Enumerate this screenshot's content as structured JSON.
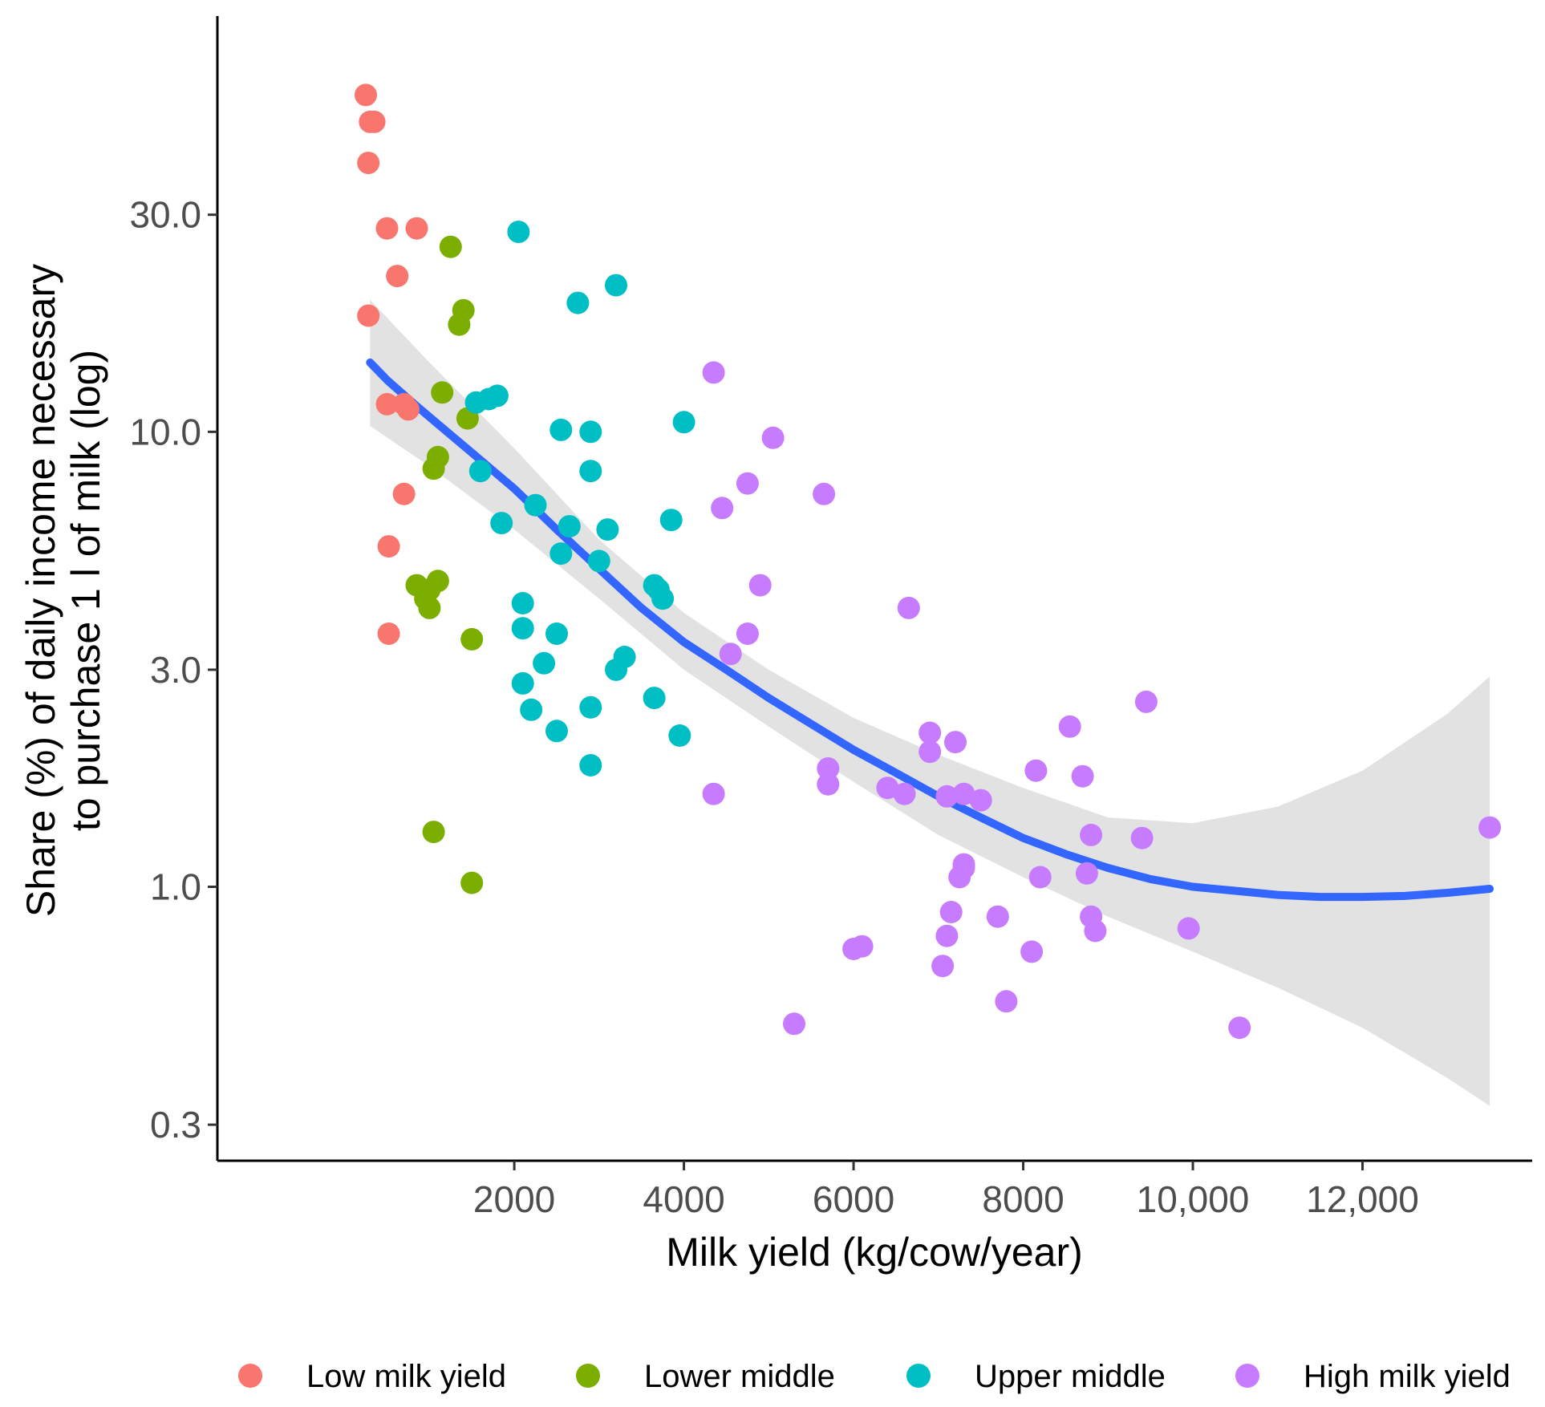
{
  "chart_data": {
    "type": "scatter",
    "xlabel": "Milk yield (kg/cow/year)",
    "ylabel_lines": [
      "Share (%) of daily income necessary",
      "to purchase 1 l of milk (log)"
    ],
    "x_scale": "linear",
    "y_scale": "log",
    "xlim": [
      -1500,
      14000
    ],
    "ylim": [
      0.25,
      82
    ],
    "x_ticks": [
      {
        "value": 2000,
        "label": "2000"
      },
      {
        "value": 4000,
        "label": "4000"
      },
      {
        "value": 6000,
        "label": "6000"
      },
      {
        "value": 8000,
        "label": "8000"
      },
      {
        "value": 10000,
        "label": "10,000"
      },
      {
        "value": 12000,
        "label": "12,000"
      }
    ],
    "y_ticks": [
      {
        "value": 0.3,
        "label": "0.3"
      },
      {
        "value": 1.0,
        "label": "1.0"
      },
      {
        "value": 3.0,
        "label": "3.0"
      },
      {
        "value": 10.0,
        "label": "10.0"
      },
      {
        "value": 30.0,
        "label": "30.0"
      }
    ],
    "grid": false,
    "legend_position": "bottom",
    "series": [
      {
        "name": "Low milk yield",
        "color": "#F8766D",
        "points": [
          [
            250,
            55
          ],
          [
            300,
            48
          ],
          [
            350,
            48
          ],
          [
            280,
            39
          ],
          [
            500,
            28
          ],
          [
            850,
            28
          ],
          [
            620,
            22
          ],
          [
            280,
            18
          ],
          [
            500,
            11.5
          ],
          [
            700,
            11.5
          ],
          [
            750,
            11.2
          ],
          [
            700,
            7.3
          ],
          [
            520,
            5.6
          ],
          [
            520,
            3.6
          ]
        ]
      },
      {
        "name": "Lower middle",
        "color": "#7CAE00",
        "points": [
          [
            1250,
            25.5
          ],
          [
            1400,
            18.5
          ],
          [
            1350,
            17.2
          ],
          [
            1150,
            12.2
          ],
          [
            1450,
            10.7
          ],
          [
            1100,
            8.8
          ],
          [
            1050,
            8.3
          ],
          [
            850,
            4.6
          ],
          [
            1000,
            4.5
          ],
          [
            1100,
            4.7
          ],
          [
            950,
            4.3
          ],
          [
            1000,
            4.1
          ],
          [
            1500,
            3.5
          ],
          [
            1050,
            1.32
          ],
          [
            1500,
            1.02
          ]
        ]
      },
      {
        "name": "Upper middle",
        "color": "#00BFC4",
        "points": [
          [
            2050,
            27.5
          ],
          [
            3200,
            21
          ],
          [
            2750,
            19.2
          ],
          [
            1550,
            11.6
          ],
          [
            1700,
            11.8
          ],
          [
            1800,
            12.0
          ],
          [
            2550,
            10.1
          ],
          [
            2900,
            10.0
          ],
          [
            4000,
            10.5
          ],
          [
            1600,
            8.2
          ],
          [
            2900,
            8.2
          ],
          [
            2250,
            6.9
          ],
          [
            1850,
            6.3
          ],
          [
            2650,
            6.2
          ],
          [
            3100,
            6.1
          ],
          [
            3850,
            6.4
          ],
          [
            2550,
            5.4
          ],
          [
            3000,
            5.2
          ],
          [
            3650,
            4.6
          ],
          [
            3700,
            4.5
          ],
          [
            3750,
            4.3
          ],
          [
            2100,
            4.2
          ],
          [
            2100,
            3.7
          ],
          [
            2500,
            3.6
          ],
          [
            2350,
            3.1
          ],
          [
            3300,
            3.2
          ],
          [
            3200,
            3.0
          ],
          [
            2100,
            2.8
          ],
          [
            3650,
            2.6
          ],
          [
            2200,
            2.45
          ],
          [
            2900,
            2.48
          ],
          [
            2500,
            2.2
          ],
          [
            3950,
            2.15
          ],
          [
            2900,
            1.85
          ]
        ]
      },
      {
        "name": "High milk yield",
        "color": "#C77CFF",
        "points": [
          [
            4350,
            13.5
          ],
          [
            5050,
            9.7
          ],
          [
            4750,
            7.7
          ],
          [
            5650,
            7.3
          ],
          [
            4450,
            6.8
          ],
          [
            4900,
            4.6
          ],
          [
            6650,
            4.1
          ],
          [
            4750,
            3.6
          ],
          [
            4550,
            3.25
          ],
          [
            9450,
            2.55
          ],
          [
            8550,
            2.25
          ],
          [
            6900,
            2.18
          ],
          [
            7200,
            2.08
          ],
          [
            5700,
            1.82
          ],
          [
            8150,
            1.8
          ],
          [
            8700,
            1.75
          ],
          [
            5700,
            1.68
          ],
          [
            6900,
            1.98
          ],
          [
            4350,
            1.6
          ],
          [
            6400,
            1.65
          ],
          [
            6600,
            1.6
          ],
          [
            7100,
            1.58
          ],
          [
            7300,
            1.6
          ],
          [
            7500,
            1.55
          ],
          [
            8800,
            1.3
          ],
          [
            9400,
            1.28
          ],
          [
            13500,
            1.35
          ],
          [
            7300,
            1.1
          ],
          [
            8200,
            1.05
          ],
          [
            8750,
            1.07
          ],
          [
            7300,
            1.12
          ],
          [
            7250,
            1.05
          ],
          [
            7150,
            0.88
          ],
          [
            7700,
            0.86
          ],
          [
            8800,
            0.86
          ],
          [
            8850,
            0.8
          ],
          [
            9950,
            0.81
          ],
          [
            7100,
            0.78
          ],
          [
            6100,
            0.74
          ],
          [
            6000,
            0.73
          ],
          [
            8100,
            0.72
          ],
          [
            7050,
            0.67
          ],
          [
            7800,
            0.56
          ],
          [
            5300,
            0.5
          ],
          [
            10550,
            0.49
          ]
        ]
      }
    ],
    "trend": {
      "color": "#3366FF",
      "band_color": "#BFBFBF",
      "line": [
        [
          300,
          14.2
        ],
        [
          500,
          13.0
        ],
        [
          800,
          11.6
        ],
        [
          1100,
          10.4
        ],
        [
          1500,
          9.0
        ],
        [
          2000,
          7.5
        ],
        [
          2500,
          6.1
        ],
        [
          3000,
          5.0
        ],
        [
          3500,
          4.1
        ],
        [
          4000,
          3.45
        ],
        [
          4500,
          3.0
        ],
        [
          5000,
          2.6
        ],
        [
          5500,
          2.28
        ],
        [
          6000,
          2.0
        ],
        [
          6500,
          1.78
        ],
        [
          7000,
          1.58
        ],
        [
          7500,
          1.42
        ],
        [
          8000,
          1.28
        ],
        [
          8500,
          1.18
        ],
        [
          9000,
          1.1
        ],
        [
          9500,
          1.04
        ],
        [
          10000,
          1.0
        ],
        [
          10500,
          0.98
        ],
        [
          11000,
          0.96
        ],
        [
          11500,
          0.95
        ],
        [
          12000,
          0.95
        ],
        [
          12500,
          0.955
        ],
        [
          13000,
          0.97
        ],
        [
          13500,
          0.99
        ]
      ],
      "band_upper": [
        [
          300,
          19.5
        ],
        [
          1000,
          14.2
        ],
        [
          2000,
          9.2
        ],
        [
          3000,
          5.8
        ],
        [
          4000,
          4.0
        ],
        [
          5000,
          3.0
        ],
        [
          6000,
          2.35
        ],
        [
          7000,
          1.95
        ],
        [
          8000,
          1.65
        ],
        [
          9000,
          1.42
        ],
        [
          10000,
          1.38
        ],
        [
          11000,
          1.5
        ],
        [
          12000,
          1.8
        ],
        [
          13000,
          2.4
        ],
        [
          13500,
          2.9
        ]
      ],
      "band_lower": [
        [
          300,
          10.3
        ],
        [
          1000,
          8.4
        ],
        [
          2000,
          6.1
        ],
        [
          3000,
          4.3
        ],
        [
          4000,
          3.0
        ],
        [
          5000,
          2.25
        ],
        [
          6000,
          1.7
        ],
        [
          7000,
          1.3
        ],
        [
          8000,
          1.05
        ],
        [
          9000,
          0.86
        ],
        [
          10000,
          0.72
        ],
        [
          11000,
          0.6
        ],
        [
          12000,
          0.49
        ],
        [
          13000,
          0.38
        ],
        [
          13500,
          0.33
        ]
      ]
    }
  }
}
